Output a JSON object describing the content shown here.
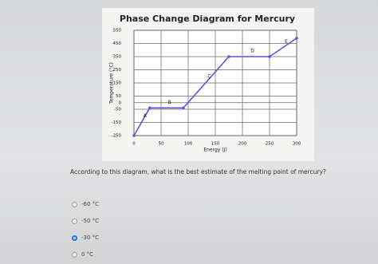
{
  "chart_data": {
    "type": "line",
    "title": "Phase Change Diagram for Mercury",
    "x_label": "Energy (J)",
    "y_label": "Temperature (°C)",
    "x": [
      0,
      29,
      91,
      175,
      250,
      300
    ],
    "values": [
      -250,
      -40,
      -40,
      350,
      350,
      490
    ],
    "annotations": [
      "A",
      "B",
      "C",
      "D",
      "E"
    ],
    "color": "#5a55d8",
    "xlim": [
      0,
      300
    ],
    "xticks": [
      0,
      50,
      100,
      150,
      200,
      250,
      300
    ],
    "ylim": [
      -250,
      550
    ],
    "yticks": [
      550,
      450,
      350,
      250,
      150,
      50,
      0,
      -50,
      -150,
      -250
    ],
    "grid": true
  },
  "question": "According to this diagram, what is the best estimate of the melting point of mercury?",
  "options": [
    "-60 °C",
    "-50 °C",
    "-30 °C",
    "0 °C"
  ],
  "selected": 2
}
